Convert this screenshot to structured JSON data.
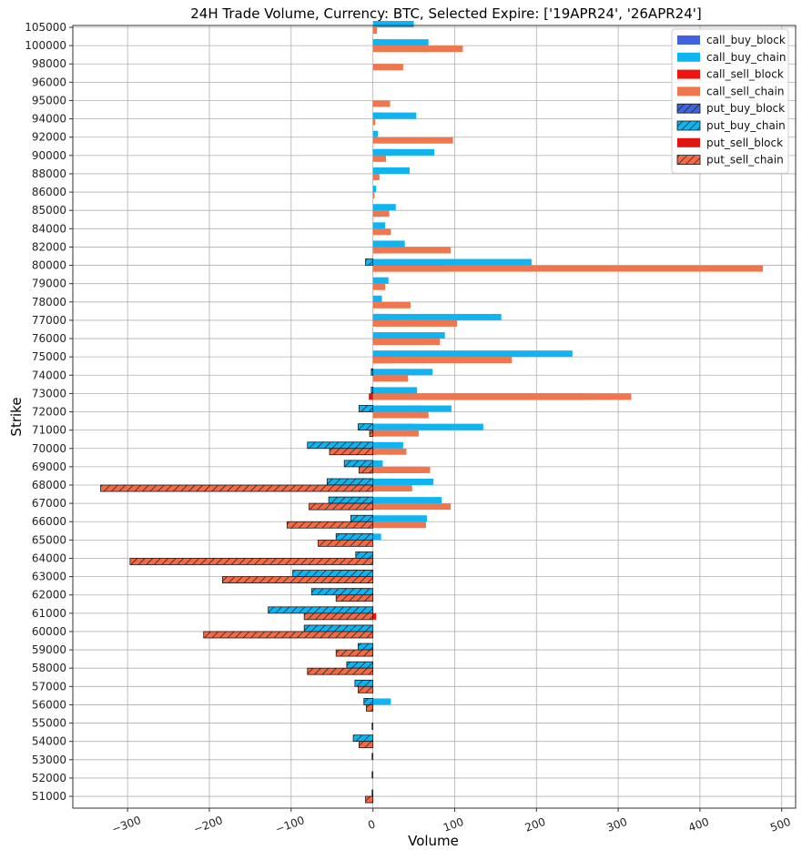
{
  "chart_data": {
    "type": "bar",
    "orientation": "horizontal",
    "title": "24H Trade Volume, Currency: BTC, Selected Expire: ['19APR24', '26APR24']",
    "xlabel": "Volume",
    "ylabel": "Strike",
    "xlim": [
      -367,
      517
    ],
    "xticks": [
      -300,
      -200,
      -100,
      0,
      100,
      200,
      300,
      400,
      500
    ],
    "xtick_labels": [
      "−300",
      "−200",
      "−100",
      "0",
      "100",
      "200",
      "300",
      "400",
      "500"
    ],
    "grid": true,
    "legend_position": "top-right",
    "categories": [
      "105000",
      "100000",
      "98000",
      "96000",
      "95000",
      "94000",
      "92000",
      "90000",
      "88000",
      "86000",
      "85000",
      "84000",
      "82000",
      "80000",
      "79000",
      "78000",
      "77000",
      "76000",
      "75000",
      "74000",
      "73000",
      "72000",
      "71000",
      "70000",
      "69000",
      "68000",
      "67000",
      "66000",
      "65000",
      "64000",
      "63000",
      "62000",
      "61000",
      "60000",
      "59000",
      "58000",
      "57000",
      "56000",
      "55000",
      "54000",
      "53000",
      "52000",
      "51000"
    ],
    "series": [
      {
        "name": "call_buy_block",
        "color": "#3e63dd",
        "hatch": false,
        "offset": "upper",
        "values": [
          0,
          12,
          0,
          0,
          0,
          12,
          0,
          25,
          0,
          0,
          0,
          0,
          0,
          0,
          0,
          0,
          18,
          0,
          0,
          0,
          0,
          60,
          50,
          0,
          0,
          42,
          0,
          0,
          0,
          0,
          0,
          0,
          0,
          0,
          0,
          0,
          0,
          0,
          0,
          0,
          0,
          0,
          0
        ]
      },
      {
        "name": "call_buy_chain",
        "color": "#0fb4f0",
        "hatch": false,
        "offset": "upper",
        "values": [
          50,
          68,
          0,
          0,
          0,
          53,
          6,
          75,
          45,
          4,
          28,
          15,
          39,
          194,
          19,
          11,
          157,
          88,
          244,
          73,
          54,
          96,
          135,
          37,
          12,
          74,
          84,
          66,
          10,
          0,
          0,
          0,
          0,
          0,
          0,
          0,
          0,
          22,
          0,
          0,
          0,
          0,
          0
        ]
      },
      {
        "name": "call_sell_block",
        "color": "#ef1511",
        "hatch": false,
        "offset": "lower",
        "values": [
          0,
          0,
          0,
          0,
          12,
          0,
          0,
          0,
          0,
          0,
          0,
          0,
          12,
          88,
          0,
          0,
          0,
          65,
          25,
          0,
          265,
          0,
          0,
          4,
          60,
          4,
          0,
          0,
          0,
          0,
          0,
          0,
          4,
          0,
          0,
          0,
          0,
          0,
          0,
          0,
          0,
          0,
          0
        ]
      },
      {
        "name": "call_sell_chain",
        "color": "#f0764e",
        "hatch": false,
        "offset": "lower",
        "values": [
          5,
          110,
          37,
          0,
          21,
          3,
          98,
          16,
          8,
          2,
          20,
          22,
          95,
          477,
          15,
          46,
          103,
          82,
          170,
          43,
          316,
          68,
          56,
          41,
          70,
          48,
          95,
          65,
          0,
          0,
          0,
          0,
          0,
          0,
          0,
          0,
          0,
          0,
          0,
          0,
          0,
          0,
          0
        ]
      },
      {
        "name": "put_buy_block",
        "color": "#3e63dd",
        "hatch": true,
        "offset": "upper",
        "values": [
          0,
          0,
          0,
          0,
          0,
          0,
          0,
          0,
          0,
          0,
          0,
          0,
          0,
          0,
          0,
          0,
          0,
          0,
          0,
          0,
          0,
          0,
          0,
          0,
          0,
          -20,
          0,
          0,
          0,
          0,
          -50,
          -40,
          -70,
          -25,
          0,
          0,
          0,
          0,
          0,
          0,
          0,
          0,
          0
        ]
      },
      {
        "name": "put_buy_chain",
        "color": "#0fb4f0",
        "hatch": true,
        "offset": "upper",
        "values": [
          0,
          0,
          0,
          0,
          0,
          0,
          0,
          0,
          0,
          0,
          0,
          0,
          0,
          -9,
          0,
          0,
          0,
          0,
          0,
          -2,
          -2,
          -17,
          -18,
          -80,
          -35,
          -56,
          -54,
          -27,
          -45,
          -21,
          -98,
          -75,
          -128,
          -84,
          -18,
          -32,
          -22,
          -11,
          0,
          -24,
          -1,
          -1,
          -1
        ]
      },
      {
        "name": "put_sell_block",
        "color": "#e01412",
        "hatch": false,
        "offset": "lower",
        "values": [
          0,
          0,
          0,
          0,
          0,
          0,
          0,
          0,
          0,
          0,
          0,
          0,
          0,
          0,
          0,
          0,
          0,
          0,
          0,
          0,
          -5,
          0,
          0,
          -20,
          -10,
          -292,
          -38,
          -62,
          0,
          -147,
          -75,
          -27,
          -50,
          -100,
          -25,
          0,
          0,
          0,
          0,
          0,
          0,
          0,
          0
        ]
      },
      {
        "name": "put_sell_chain",
        "color": "#f46a46",
        "hatch": true,
        "offset": "lower",
        "values": [
          0,
          0,
          0,
          0,
          0,
          0,
          0,
          0,
          0,
          0,
          0,
          0,
          0,
          0,
          0,
          0,
          0,
          0,
          0,
          0,
          0,
          0,
          -4,
          -53,
          -17,
          -333,
          -78,
          -105,
          -67,
          -297,
          -184,
          -45,
          -84,
          -207,
          -45,
          -80,
          -18,
          -8,
          -1,
          -17,
          0,
          0,
          -9
        ]
      }
    ]
  }
}
